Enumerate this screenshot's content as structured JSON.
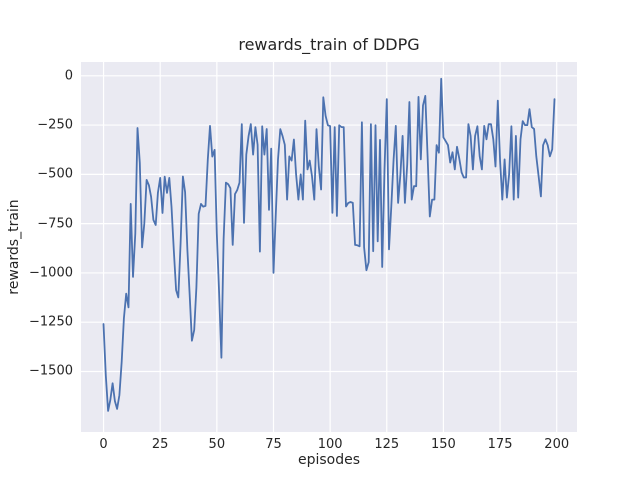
{
  "figure": {
    "title": "rewards_train of DDPG",
    "xlabel": "episodes",
    "ylabel": "rewards_train"
  },
  "chart_data": {
    "type": "line",
    "title": "rewards_train of DDPG",
    "xlabel": "episodes",
    "ylabel": "rewards_train",
    "grid": true,
    "legend": "none",
    "xlim": [
      -9.95,
      208.95
    ],
    "ylim": [
      -1807,
      70
    ],
    "x_ticks": [
      0,
      25,
      50,
      75,
      100,
      125,
      150,
      175,
      200
    ],
    "y_ticks": [
      0,
      -250,
      -500,
      -750,
      -1000,
      -1250,
      -1500
    ],
    "styles": {
      "figure_bg": "#FFFFFF",
      "axes_bg": "#EAEAF2",
      "grid_color": "#FFFFFF",
      "line_color": "#4C72B0",
      "text_color": "#262626",
      "line_width": 1.8
    },
    "series": [
      {
        "name": "rewards_train",
        "color": "#4C72B0",
        "x_start": 0,
        "x_step": 1,
        "n_points": 200,
        "y": [
          -1259,
          -1520,
          -1700,
          -1645,
          -1560,
          -1650,
          -1690,
          -1620,
          -1450,
          -1230,
          -1105,
          -1175,
          -650,
          -1020,
          -800,
          -265,
          -442,
          -870,
          -750,
          -528,
          -555,
          -614,
          -731,
          -757,
          -594,
          -518,
          -696,
          -512,
          -594,
          -518,
          -664,
          -884,
          -1087,
          -1124,
          -848,
          -511,
          -590,
          -884,
          -1104,
          -1344,
          -1290,
          -1073,
          -700,
          -650,
          -664,
          -660,
          -424,
          -254,
          -410,
          -376,
          -800,
          -1100,
          -1430,
          -830,
          -542,
          -550,
          -570,
          -858,
          -600,
          -580,
          -542,
          -245,
          -746,
          -400,
          -305,
          -245,
          -400,
          -260,
          -350,
          -892,
          -256,
          -400,
          -270,
          -680,
          -370,
          -1000,
          -700,
          -424,
          -271,
          -305,
          -350,
          -628,
          -409,
          -430,
          -323,
          -500,
          -628,
          -500,
          -628,
          -228,
          -475,
          -430,
          -510,
          -628,
          -271,
          -460,
          -577,
          -109,
          -203,
          -251,
          -255,
          -695,
          -260,
          -711,
          -251,
          -260,
          -260,
          -663,
          -645,
          -640,
          -645,
          -858,
          -860,
          -865,
          -236,
          -870,
          -986,
          -945,
          -245,
          -890,
          -251,
          -840,
          -325,
          -970,
          -475,
          -118,
          -880,
          -663,
          -424,
          -254,
          -645,
          -500,
          -305,
          -645,
          -450,
          -133,
          -628,
          -560,
          -560,
          -107,
          -424,
          -150,
          -102,
          -409,
          -714,
          -628,
          -628,
          -352,
          -390,
          -15,
          -312,
          -332,
          -352,
          -440,
          -388,
          -475,
          -360,
          -420,
          -490,
          -516,
          -516,
          -245,
          -305,
          -475,
          -305,
          -256,
          -409,
          -475,
          -254,
          -322,
          -245,
          -245,
          -322,
          -460,
          -126,
          -434,
          -628,
          -424,
          -618,
          -500,
          -256,
          -628,
          -305,
          -618,
          -322,
          -230,
          -250,
          -250,
          -169,
          -260,
          -270,
          -409,
          -509,
          -612,
          -352,
          -322,
          -352,
          -409,
          -373,
          -118
        ]
      }
    ]
  }
}
